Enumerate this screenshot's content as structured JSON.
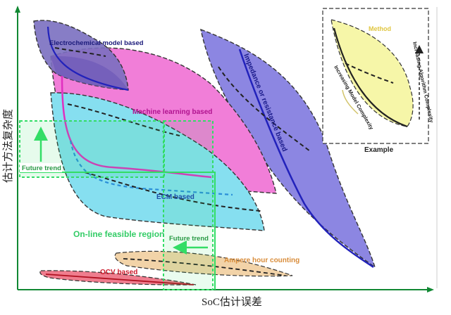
{
  "axes": {
    "y_label": "估计方法复杂度",
    "x_label": "SoC估计误差"
  },
  "regions": {
    "electrochemical": "Electrochemical model based",
    "machine_learning": "Machine learning based",
    "impedance": "Impedance or resistance based",
    "ecm": "ECM based",
    "online_feasible": "On-line feasible region",
    "ampere_hour": "Ampere hour counting",
    "qcv": "OCV based"
  },
  "arrows": {
    "future_trend_vertical": "Future trend",
    "future_trend_horizontal": "Future trend"
  },
  "example": {
    "method": "Method",
    "increasing_model_complexity": "Increasing Model Complexity",
    "increasing_algorithm_complexity": "Increasing Algorithm Complexity",
    "caption": "Example"
  },
  "colors": {
    "electrochemical_fill": "#7a6fc0",
    "machine_learning_fill": "#f17ed8",
    "impedance_fill": "#8c86e2",
    "ecm_fill": "#86dff0",
    "ampere_fill": "#f2d3a8",
    "ocv_fill": "#ef7d8e",
    "example_fill": "#f6f6a8",
    "online_green": "#33dd66",
    "axis_green": "#118833",
    "blue_curve": "#2222bb",
    "magenta_curve": "#e02fc0"
  }
}
